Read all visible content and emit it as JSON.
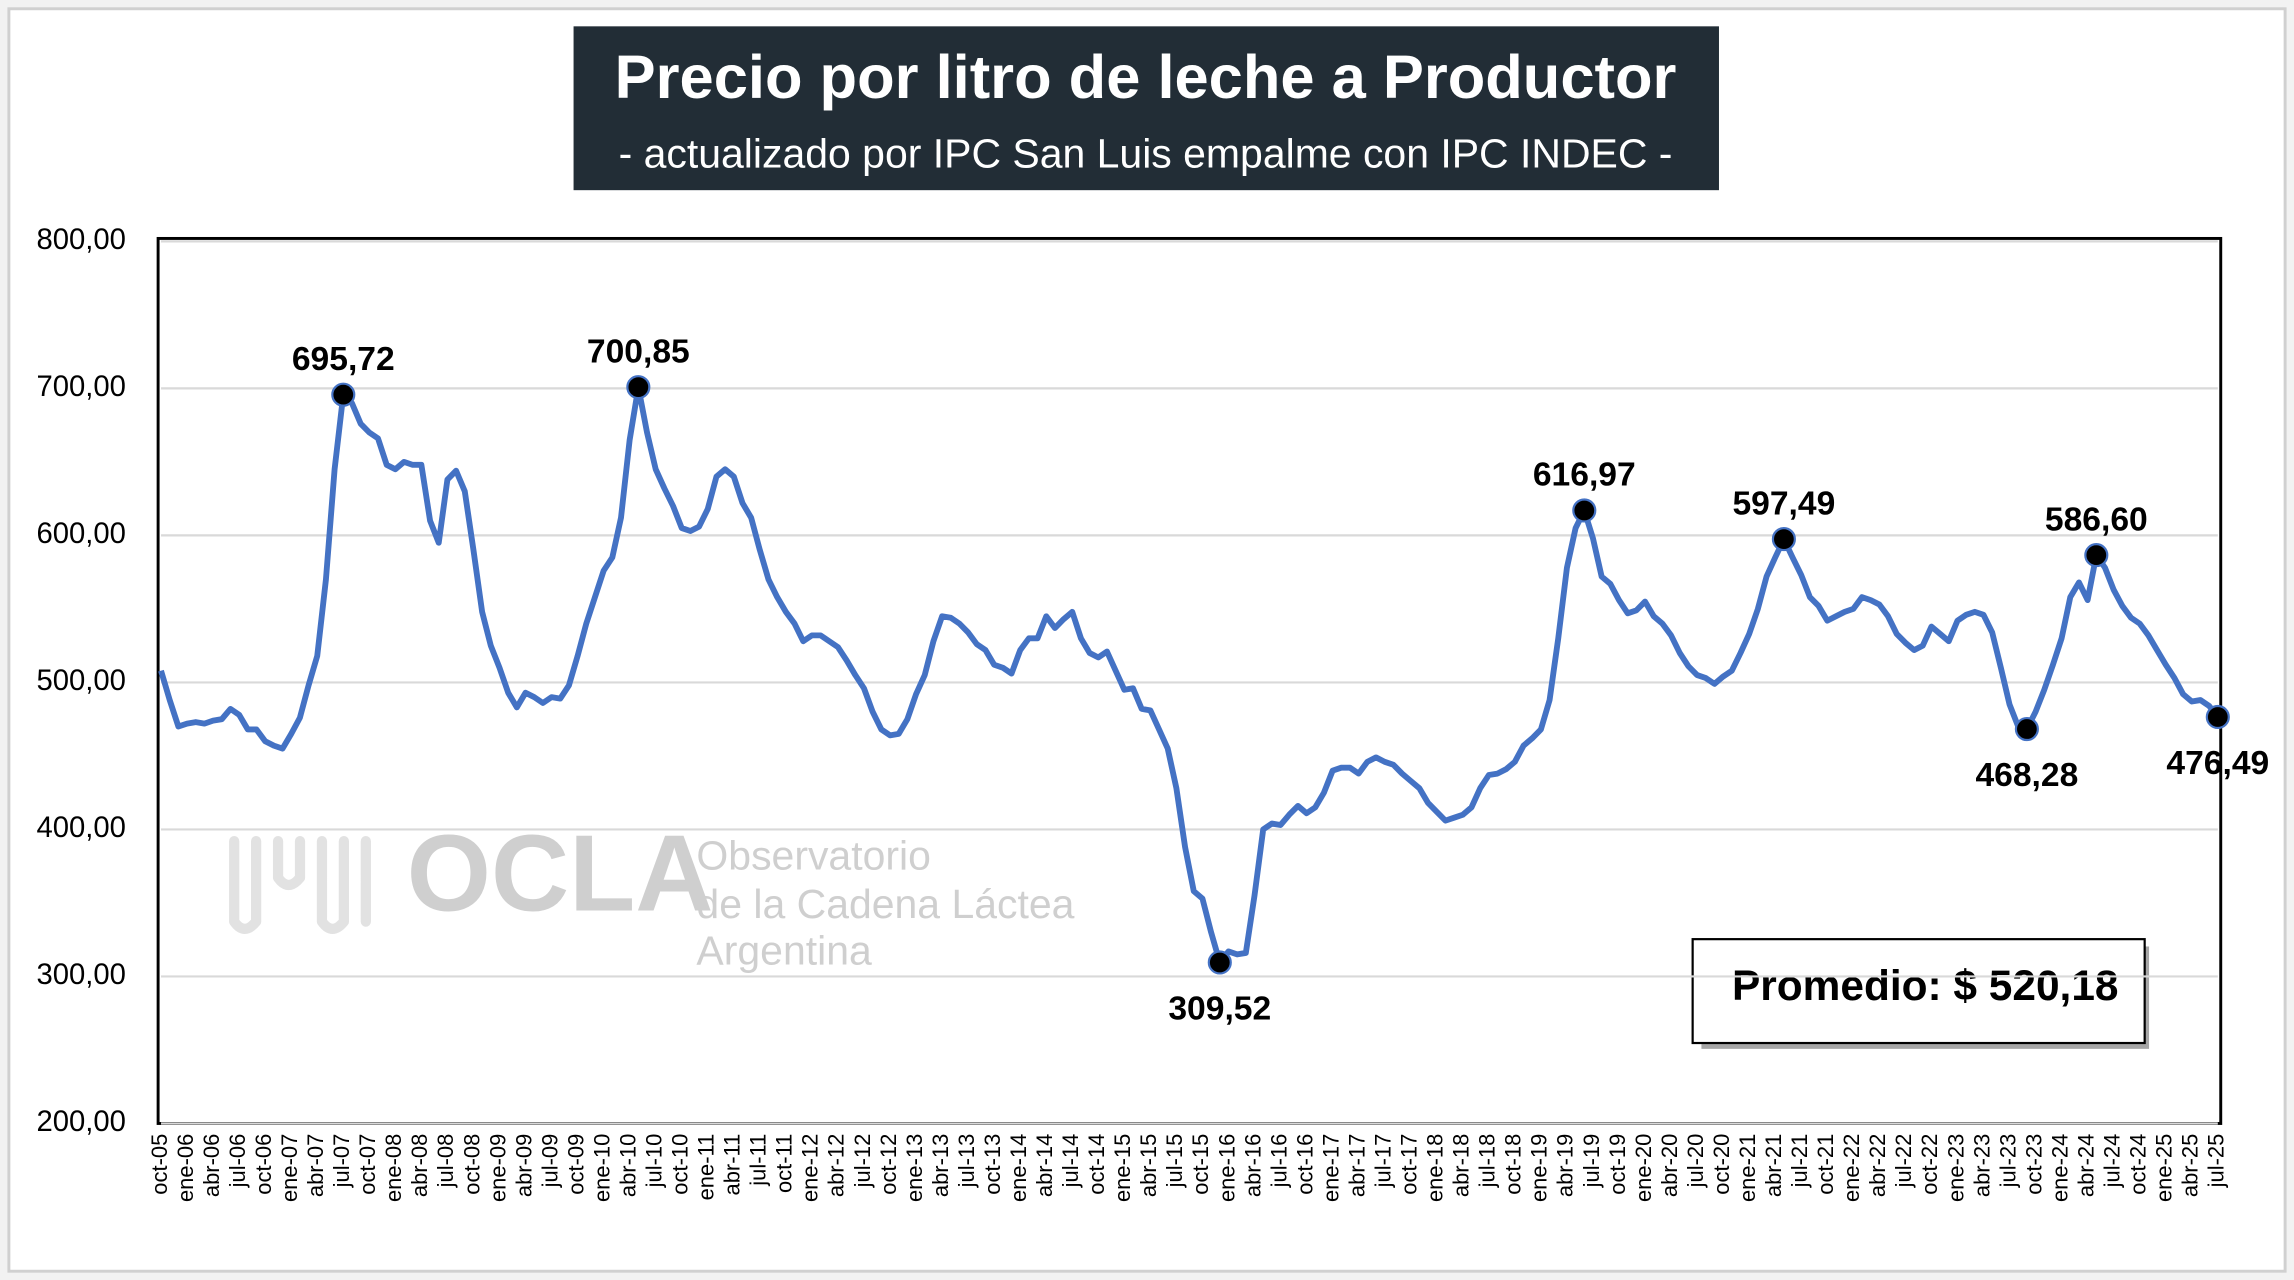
{
  "chart_data": {
    "type": "line",
    "title": "Precio por litro de leche a Productor",
    "subtitle": "- actualizado por IPC San Luis empalme con IPC INDEC -",
    "note": "Promedio: $ 520,18",
    "watermark": [
      "OCLA",
      "Observatorio",
      "de la Cadena Láctea",
      "Argentina"
    ],
    "ylim": [
      200,
      800
    ],
    "yticks": [
      {
        "value": 200,
        "label": "200,00"
      },
      {
        "value": 300,
        "label": "300,00"
      },
      {
        "value": 400,
        "label": "400,00"
      },
      {
        "value": 500,
        "label": "500,00"
      },
      {
        "value": 600,
        "label": "600,00"
      },
      {
        "value": 700,
        "label": "700,00"
      },
      {
        "value": 800,
        "label": "800,00"
      }
    ],
    "grid": true,
    "categories": [
      "oct-05",
      null,
      null,
      "ene-06",
      null,
      null,
      "abr-06",
      null,
      null,
      "jul-06",
      null,
      null,
      "oct-06",
      null,
      null,
      "ene-07",
      null,
      null,
      "abr-07",
      null,
      null,
      "jul-07",
      null,
      null,
      "oct-07",
      null,
      null,
      "ene-08",
      null,
      null,
      "abr-08",
      null,
      null,
      "jul-08",
      null,
      null,
      "oct-08",
      null,
      null,
      "ene-09",
      null,
      null,
      "abr-09",
      null,
      null,
      "jul-09",
      null,
      null,
      "oct-09",
      null,
      null,
      "ene-10",
      null,
      null,
      "abr-10",
      null,
      null,
      "jul-10",
      null,
      null,
      "oct-10",
      null,
      null,
      "ene-11",
      null,
      null,
      "abr-11",
      null,
      null,
      "jul-11",
      null,
      null,
      "oct-11",
      null,
      null,
      "ene-12",
      null,
      null,
      "abr-12",
      null,
      null,
      "jul-12",
      null,
      null,
      "oct-12",
      null,
      null,
      "ene-13",
      null,
      null,
      "abr-13",
      null,
      null,
      "jul-13",
      null,
      null,
      "oct-13",
      null,
      null,
      "ene-14",
      null,
      null,
      "abr-14",
      null,
      null,
      "jul-14",
      null,
      null,
      "oct-14",
      null,
      null,
      "ene-15",
      null,
      null,
      "abr-15",
      null,
      null,
      "jul-15",
      null,
      null,
      "oct-15",
      null,
      null,
      "ene-16",
      null,
      null,
      "abr-16",
      null,
      null,
      "jul-16",
      null,
      null,
      "oct-16",
      null,
      null,
      "ene-17",
      null,
      null,
      "abr-17",
      null,
      null,
      "jul-17",
      null,
      null,
      "oct-17",
      null,
      null,
      "ene-18",
      null,
      null,
      "abr-18",
      null,
      null,
      "jul-18",
      null,
      null,
      "oct-18",
      null,
      null,
      "ene-19",
      null,
      null,
      "abr-19",
      null,
      null,
      "jul-19",
      null,
      null,
      "oct-19",
      null,
      null,
      "ene-20",
      null,
      null,
      "abr-20",
      null,
      null,
      "jul-20",
      null,
      null,
      "oct-20",
      null,
      null,
      "ene-21",
      null,
      null,
      "abr-21",
      null,
      null,
      "jul-21",
      null,
      null,
      "oct-21",
      null,
      null,
      "ene-22",
      null,
      null,
      "abr-22",
      null,
      null,
      "jul-22",
      null,
      null,
      "oct-22",
      null,
      null,
      "ene-23",
      null,
      null,
      "abr-23",
      null,
      null,
      "jul-23",
      null,
      null,
      "oct-23",
      null,
      null,
      "ene-24",
      null,
      null,
      "abr-24",
      null,
      null,
      "jul-24",
      null,
      null,
      "oct-24",
      null,
      null,
      "ene-25",
      null,
      null,
      "abr-25",
      null,
      null,
      "jul-25"
    ],
    "series": [
      {
        "color": "#4472c4",
        "values": [
          508,
          488,
          470,
          472,
          473,
          472,
          474,
          475,
          482,
          478,
          468,
          468,
          460,
          457,
          455,
          465,
          476,
          498,
          518,
          570,
          645,
          695.72,
          690,
          676,
          670,
          666,
          648,
          645,
          650,
          648,
          648,
          610,
          595,
          638,
          644,
          630,
          590,
          548,
          525,
          510,
          493,
          483,
          493,
          490,
          486,
          490,
          489,
          498,
          518,
          540,
          558,
          576,
          585,
          612,
          665,
          700.85,
          670,
          645,
          632,
          620,
          605,
          603,
          606,
          618,
          640,
          645,
          640,
          622,
          612,
          590,
          570,
          558,
          548,
          540,
          528,
          532,
          532,
          528,
          524,
          515,
          505,
          496,
          480,
          468,
          464,
          465,
          475,
          492,
          505,
          528,
          545,
          544,
          540,
          534,
          526,
          522,
          512,
          510,
          506,
          522,
          530,
          530,
          545,
          537,
          543,
          548,
          530,
          520,
          517,
          521,
          508,
          495,
          496,
          482,
          481,
          468,
          455,
          428,
          388,
          358,
          353,
          330,
          309.52,
          317,
          315,
          316,
          355,
          400,
          404,
          403,
          410,
          416,
          411,
          415,
          425,
          440,
          442,
          442,
          438,
          446,
          449,
          446,
          444,
          438,
          433,
          428,
          418,
          412,
          406,
          408,
          410,
          415,
          428,
          437,
          438,
          441,
          446,
          457,
          462,
          468,
          488,
          530,
          578,
          605,
          616.97,
          598,
          572,
          567,
          556,
          547,
          549,
          555,
          545,
          540,
          532,
          520,
          511,
          505,
          503,
          499,
          504,
          508,
          520,
          533,
          550,
          572,
          585,
          597.49,
          585,
          573,
          558,
          552,
          542,
          545,
          548,
          550,
          558,
          556,
          553,
          545,
          533,
          527,
          522,
          525,
          538,
          533,
          528,
          542,
          546,
          548,
          546,
          534,
          510,
          485,
          470,
          468.28,
          480,
          495,
          512,
          530,
          558,
          568,
          556,
          586.6,
          578,
          563,
          552,
          544,
          540,
          532,
          522,
          512,
          503,
          492,
          487,
          488,
          484,
          476.49
        ],
        "value_labels": [
          null,
          null,
          null,
          null,
          null,
          null,
          null,
          null,
          null,
          null,
          null,
          null,
          null,
          null,
          null,
          null,
          null,
          null,
          null,
          null,
          null,
          "695,72",
          null,
          null,
          null,
          null,
          null,
          null,
          null,
          null,
          null,
          null,
          null,
          null,
          null,
          null,
          null,
          null,
          null,
          null,
          null,
          null,
          null,
          null,
          null,
          null,
          null,
          null,
          null,
          null,
          null,
          null,
          null,
          null,
          null,
          "700,85",
          null,
          null,
          null,
          null,
          null,
          null,
          null,
          null,
          null,
          null,
          null,
          null,
          null,
          null,
          null,
          null,
          null,
          null,
          null,
          null,
          null,
          null,
          null,
          null,
          null,
          null,
          null,
          null,
          null,
          null,
          null,
          null,
          null,
          null,
          null,
          null,
          null,
          null,
          null,
          null,
          null,
          null,
          null,
          null,
          null,
          null,
          null,
          null,
          null,
          null,
          null,
          null,
          null,
          null,
          null,
          null,
          null,
          null,
          null,
          null,
          null,
          null,
          null,
          null,
          null,
          null,
          "309,52",
          null,
          null,
          null,
          null,
          null,
          null,
          null,
          null,
          null,
          null,
          null,
          null,
          null,
          null,
          null,
          null,
          null,
          null,
          null,
          null,
          null,
          null,
          null,
          null,
          null,
          null,
          null,
          null,
          null,
          null,
          null,
          null,
          null,
          null,
          null,
          null,
          null,
          null,
          null,
          null,
          null,
          "616,97",
          null,
          null,
          null,
          null,
          null,
          null,
          null,
          null,
          null,
          null,
          null,
          null,
          null,
          null,
          null,
          null,
          null,
          null,
          null,
          null,
          null,
          null,
          "597,49",
          null,
          null,
          null,
          null,
          null,
          null,
          null,
          null,
          null,
          null,
          null,
          null,
          null,
          null,
          null,
          null,
          null,
          null,
          null,
          null,
          null,
          null,
          null,
          null,
          null,
          null,
          null,
          "468,28",
          null,
          null,
          null,
          null,
          null,
          null,
          null,
          "586,60",
          null,
          null,
          null,
          null,
          null,
          null,
          null,
          null,
          null,
          null,
          null,
          null,
          null,
          "476,49"
        ]
      }
    ]
  }
}
